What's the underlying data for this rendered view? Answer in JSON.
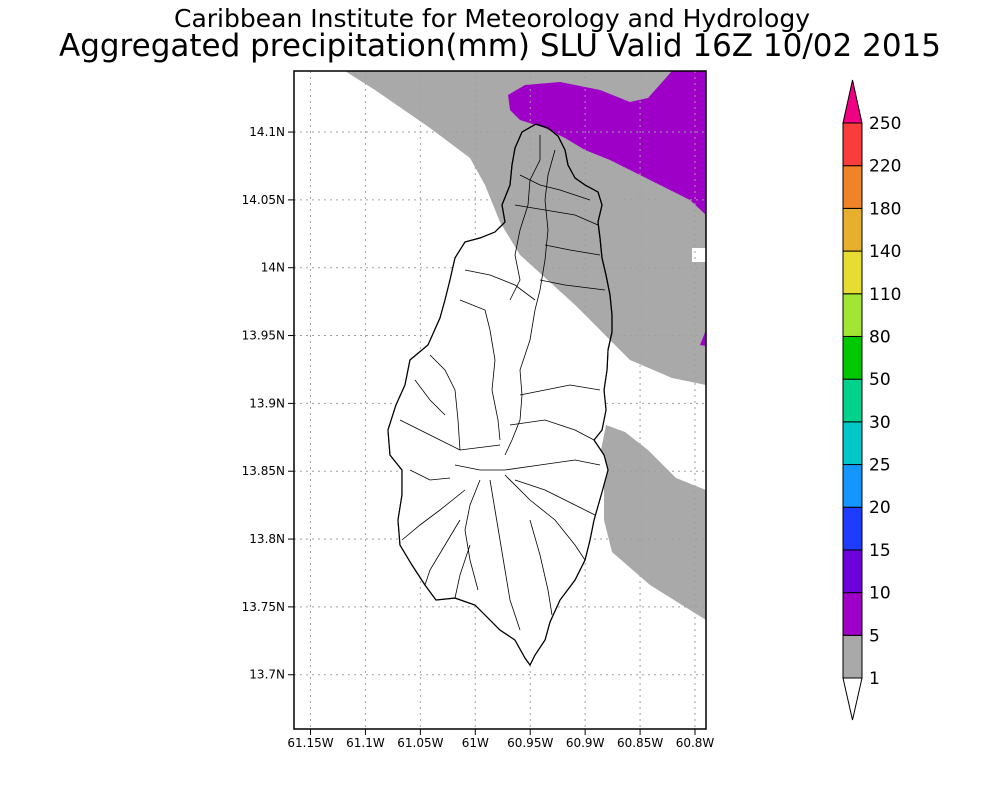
{
  "header": {
    "title_line1": "Caribbean Institute for Meteorology and Hydrology",
    "title_line2": "Aggregated precipitation(mm) SLU Valid 16Z 10/02 2015"
  },
  "map": {
    "lon_range": [
      -61.165,
      -60.79
    ],
    "lat_range": [
      13.66,
      14.145
    ],
    "x_ticks": [
      {
        "value": -61.15,
        "label": "61.15W"
      },
      {
        "value": -61.1,
        "label": "61.1W"
      },
      {
        "value": -61.05,
        "label": "61.05W"
      },
      {
        "value": -61.0,
        "label": "61W"
      },
      {
        "value": -60.95,
        "label": "60.95W"
      },
      {
        "value": -60.9,
        "label": "60.9W"
      },
      {
        "value": -60.85,
        "label": "60.85W"
      },
      {
        "value": -60.8,
        "label": "60.8W"
      }
    ],
    "y_ticks": [
      {
        "value": 14.1,
        "label": "14.1N"
      },
      {
        "value": 14.05,
        "label": "14.05N"
      },
      {
        "value": 14.0,
        "label": "14N"
      },
      {
        "value": 13.95,
        "label": "13.95N"
      },
      {
        "value": 13.9,
        "label": "13.9N"
      },
      {
        "value": 13.85,
        "label": "13.85N"
      },
      {
        "value": 13.8,
        "label": "13.8N"
      },
      {
        "value": 13.75,
        "label": "13.75N"
      },
      {
        "value": 13.7,
        "label": "13.7N"
      }
    ],
    "colors": {
      "land_fill": "#ffffff",
      "coast": "#000000",
      "grid": "#a0a0a0",
      "precip_1_5": "#a9a9a9",
      "precip_5_10": "#9e00c8"
    }
  },
  "legend": {
    "levels": [
      {
        "label": "1",
        "color": "#a9a9a9"
      },
      {
        "label": "5",
        "color": "#9e00c8"
      },
      {
        "label": "10",
        "color": "#6e00dc"
      },
      {
        "label": "15",
        "color": "#1e3cff"
      },
      {
        "label": "20",
        "color": "#1496ff"
      },
      {
        "label": "25",
        "color": "#00c8c8"
      },
      {
        "label": "30",
        "color": "#00d28c"
      },
      {
        "label": "50",
        "color": "#00c800"
      },
      {
        "label": "80",
        "color": "#a0e632"
      },
      {
        "label": "110",
        "color": "#e6dc32"
      },
      {
        "label": "140",
        "color": "#e6af2d"
      },
      {
        "label": "180",
        "color": "#f08228"
      },
      {
        "label": "220",
        "color": "#fa3c3c"
      },
      {
        "label": "250",
        "color": "#f00082"
      }
    ],
    "top_arrow_color": "#f00082",
    "bottom_arrow_color": "#ffffff"
  }
}
